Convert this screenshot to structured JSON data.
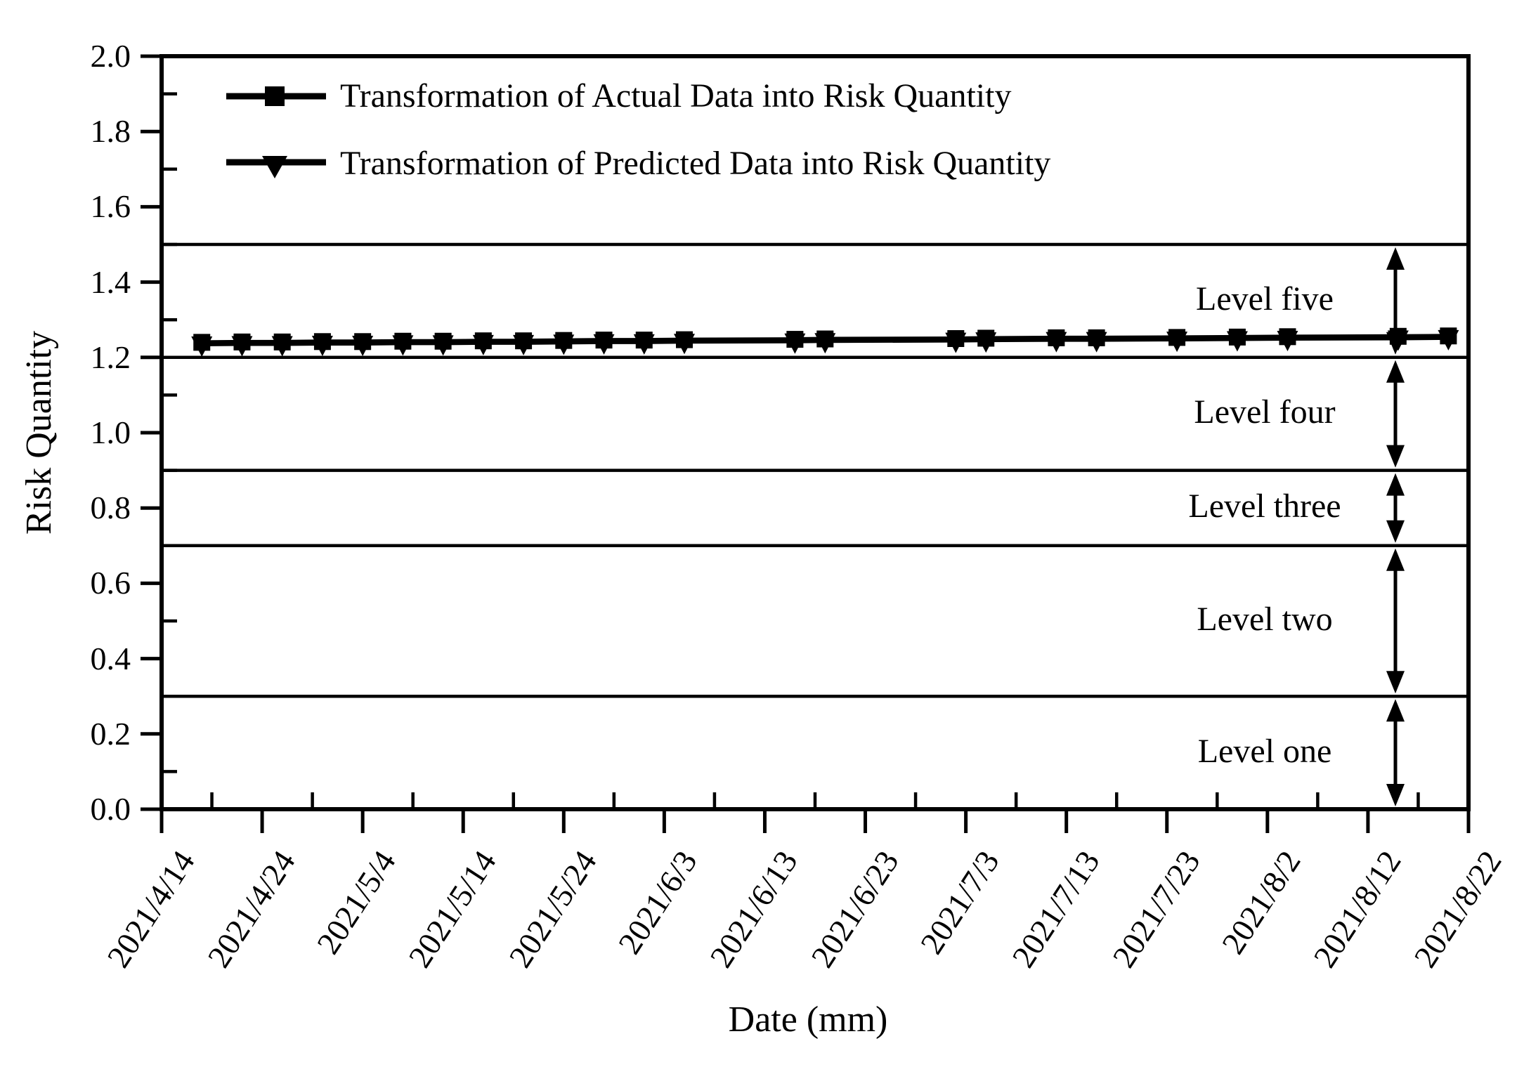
{
  "figure": {
    "background_color": "#ffffff",
    "ink_color": "#000000"
  },
  "chart_data": {
    "type": "line",
    "title": "",
    "xlabel": "Date (mm)",
    "ylabel": "Risk Quantity",
    "ylim": [
      0.0,
      2.0
    ],
    "y_tick_step": 0.2,
    "y_tick_labels": [
      "0.0",
      "0.2",
      "0.4",
      "0.6",
      "0.8",
      "1.0",
      "1.2",
      "1.4",
      "1.6",
      "1.8",
      "2.0"
    ],
    "x_tick_labels": [
      "2021/4/14",
      "2021/4/24",
      "2021/5/4",
      "2021/5/14",
      "2021/5/24",
      "2021/6/3",
      "2021/6/13",
      "2021/6/23",
      "2021/7/3",
      "2021/7/13",
      "2021/7/23",
      "2021/8/2",
      "2021/8/12",
      "2021/8/22"
    ],
    "grid": "horizontal-level-lines-only",
    "legend_position": "top-left-inside",
    "x": [
      "2021/4/18",
      "2021/4/22",
      "2021/4/26",
      "2021/4/30",
      "2021/5/4",
      "2021/5/8",
      "2021/5/12",
      "2021/5/16",
      "2021/5/20",
      "2021/5/24",
      "2021/5/28",
      "2021/6/1",
      "2021/6/5",
      "2021/6/16",
      "2021/6/19",
      "2021/7/2",
      "2021/7/5",
      "2021/7/12",
      "2021/7/16",
      "2021/7/24",
      "2021/7/30",
      "2021/8/4",
      "2021/8/15",
      "2021/8/20"
    ],
    "series": [
      {
        "name": "Transformation of Actual Data into Risk Quantity",
        "marker": "square",
        "values": [
          1.24,
          1.241,
          1.241,
          1.242,
          1.242,
          1.243,
          1.243,
          1.244,
          1.244,
          1.245,
          1.246,
          1.246,
          1.247,
          1.248,
          1.249,
          1.25,
          1.251,
          1.252,
          1.252,
          1.253,
          1.254,
          1.255,
          1.256,
          1.257
        ]
      },
      {
        "name": "Transformation of Predicted Data into Risk Quantity",
        "marker": "triangle-down",
        "values": [
          1.235,
          1.236,
          1.236,
          1.237,
          1.237,
          1.238,
          1.238,
          1.239,
          1.239,
          1.24,
          1.241,
          1.241,
          1.242,
          1.243,
          1.244,
          1.245,
          1.246,
          1.247,
          1.247,
          1.248,
          1.249,
          1.25,
          1.251,
          1.252
        ]
      }
    ],
    "level_line_values": [
      0.3,
      0.7,
      0.9,
      1.2,
      1.5
    ],
    "levels": [
      {
        "label": "Level one",
        "from": 0.0,
        "to": 0.3
      },
      {
        "label": "Level two",
        "from": 0.3,
        "to": 0.7
      },
      {
        "label": "Level three",
        "from": 0.7,
        "to": 0.9
      },
      {
        "label": "Level four",
        "from": 0.9,
        "to": 1.2
      },
      {
        "label": "Level five",
        "from": 1.2,
        "to": 1.5
      }
    ]
  }
}
